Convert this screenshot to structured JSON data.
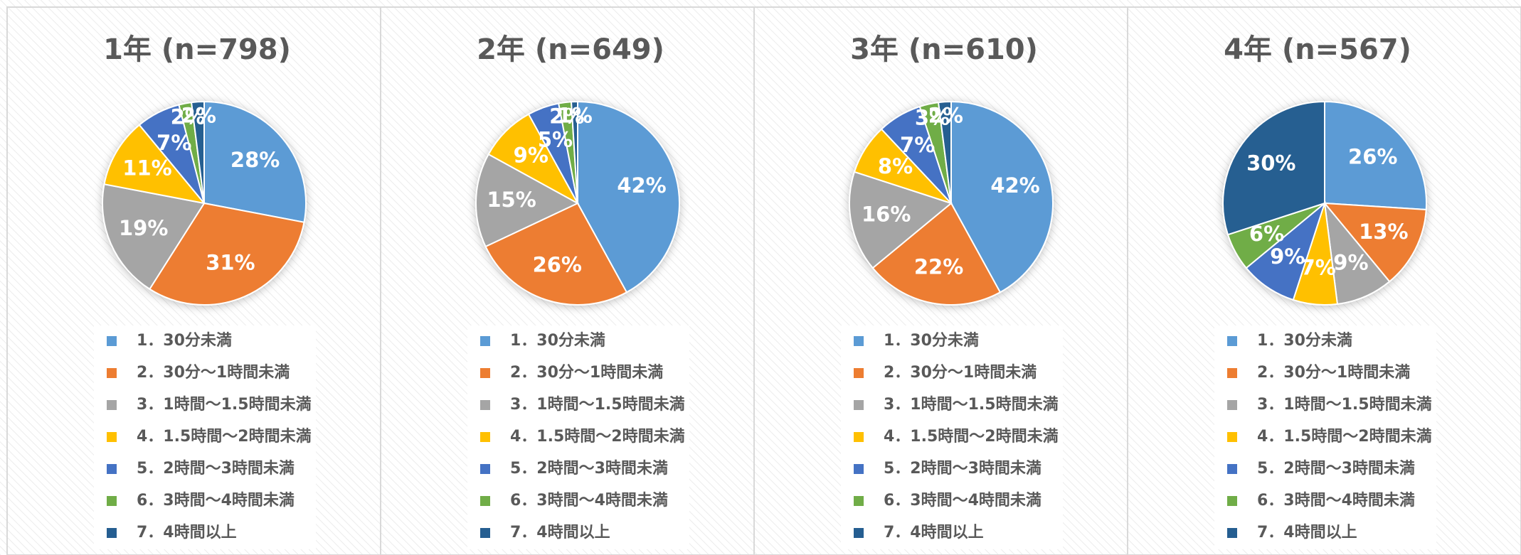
{
  "chart_data": [
    {
      "type": "pie",
      "title": "1年 (n=798)",
      "categories": [
        "1．30分未満",
        "2．30分～1時間未満",
        "3．1時間～1.5時間未満",
        "4．1.5時間～2時間未満",
        "5．2時間～3時間未満",
        "6．3時間～4時間未満",
        "7．4時間以上"
      ],
      "values": [
        28,
        31,
        19,
        11,
        7,
        2,
        2
      ],
      "value_labels": [
        "28%",
        "31%",
        "19%",
        "11%",
        "7%",
        "2%",
        "2%"
      ],
      "colors": [
        "#5b9bd5",
        "#ed7d31",
        "#a5a5a5",
        "#ffc000",
        "#4472c4",
        "#70ad47",
        "#255e91"
      ]
    },
    {
      "type": "pie",
      "title": "2年 (n=649)",
      "categories": [
        "1．30分未満",
        "2．30分～1時間未満",
        "3．1時間～1.5時間未満",
        "4．1.5時間～2時間未満",
        "5．2時間～3時間未満",
        "6．3時間～4時間未満",
        "7．4時間以上"
      ],
      "values": [
        42,
        26,
        15,
        9,
        5,
        2,
        1
      ],
      "value_labels": [
        "42%",
        "26%",
        "15%",
        "9%",
        "5%",
        "2%",
        "1%"
      ],
      "colors": [
        "#5b9bd5",
        "#ed7d31",
        "#a5a5a5",
        "#ffc000",
        "#4472c4",
        "#70ad47",
        "#255e91"
      ]
    },
    {
      "type": "pie",
      "title": "3年 (n=610)",
      "categories": [
        "1．30分未満",
        "2．30分～1時間未満",
        "3．1時間～1.5時間未満",
        "4．1.5時間～2時間未満",
        "5．2時間～3時間未満",
        "6．3時間～4時間未満",
        "7．4時間以上"
      ],
      "values": [
        42,
        22,
        16,
        8,
        7,
        3,
        2
      ],
      "value_labels": [
        "42%",
        "22%",
        "16%",
        "8%",
        "7%",
        "3%",
        "2%"
      ],
      "colors": [
        "#5b9bd5",
        "#ed7d31",
        "#a5a5a5",
        "#ffc000",
        "#4472c4",
        "#70ad47",
        "#255e91"
      ]
    },
    {
      "type": "pie",
      "title": "4年 (n=567)",
      "categories": [
        "1．30分未満",
        "2．30分～1時間未満",
        "3．1時間～1.5時間未満",
        "4．1.5時間～2時間未満",
        "5．2時間～3時間未満",
        "6．3時間～4時間未満",
        "7．4時間以上"
      ],
      "values": [
        26,
        13,
        9,
        7,
        9,
        6,
        30
      ],
      "value_labels": [
        "26%",
        "13%",
        "9%",
        "7%",
        "9%",
        "6%",
        "30%"
      ],
      "colors": [
        "#5b9bd5",
        "#ed7d31",
        "#a5a5a5",
        "#ffc000",
        "#4472c4",
        "#70ad47",
        "#255e91"
      ]
    }
  ]
}
